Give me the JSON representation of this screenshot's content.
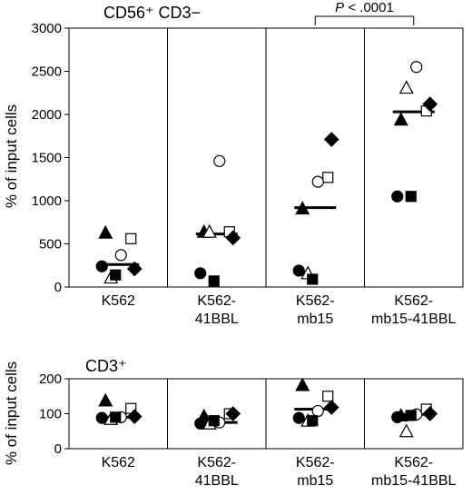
{
  "chart_data": [
    {
      "type": "scatter",
      "title": "CD56⁺ CD3−",
      "ylabel": "% of input cells",
      "ylim": [
        0,
        3000
      ],
      "yticks": [
        "0",
        "500",
        "1000",
        "1500",
        "2000",
        "2500",
        "3000"
      ],
      "categories": [
        "K562",
        "K562-\n41BBL",
        "K562-\nmb15",
        "K562-\nmb15-41BBL"
      ],
      "medians": [
        260,
        615,
        920,
        2030
      ],
      "series": [
        {
          "marker": "triangle-filled",
          "values": [
            630,
            640,
            910,
            1940
          ]
        },
        {
          "marker": "square-open",
          "values": [
            560,
            640,
            1270,
            2040
          ]
        },
        {
          "marker": "circle-open",
          "values": [
            370,
            1460,
            1220,
            2550
          ]
        },
        {
          "marker": "triangle-open",
          "values": [
            110,
            640,
            160,
            2310
          ]
        },
        {
          "marker": "circle-filled",
          "values": [
            240,
            160,
            190,
            1050
          ]
        },
        {
          "marker": "square-filled",
          "values": [
            140,
            70,
            90,
            1050
          ]
        },
        {
          "marker": "diamond-filled",
          "values": [
            210,
            570,
            1710,
            2120
          ]
        }
      ],
      "annotation": {
        "text": "P < .0001",
        "between": [
          2,
          3
        ]
      }
    },
    {
      "type": "scatter",
      "title": "CD3⁺",
      "ylabel": "% of input cells",
      "ylim": [
        0,
        200
      ],
      "yticks": [
        "0",
        "100",
        "200"
      ],
      "categories": [
        "K562",
        "K562-\n41BBL",
        "K562-\nmb15",
        "K562-\nmb15-41BBL"
      ],
      "medians": [
        90,
        75,
        113,
        98
      ],
      "series": [
        {
          "marker": "triangle-filled",
          "values": [
            138,
            93,
            182,
            95
          ]
        },
        {
          "marker": "square-open",
          "values": [
            115,
            100,
            150,
            113
          ]
        },
        {
          "marker": "circle-open",
          "values": [
            90,
            75,
            108,
            98
          ]
        },
        {
          "marker": "triangle-open",
          "values": [
            85,
            72,
            80,
            50
          ]
        },
        {
          "marker": "circle-filled",
          "values": [
            88,
            72,
            88,
            90
          ]
        },
        {
          "marker": "square-filled",
          "values": [
            90,
            80,
            80,
            95
          ]
        },
        {
          "marker": "diamond-filled",
          "values": [
            92,
            100,
            118,
            100
          ]
        }
      ]
    }
  ]
}
